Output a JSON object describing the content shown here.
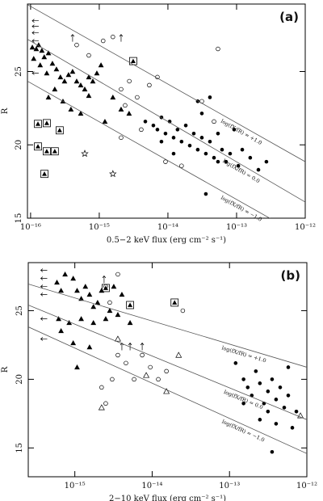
{
  "chart_data": [
    {
      "type": "scatter",
      "panel_label": "(a)",
      "xlabel": "0.5−2 keV flux (erg cm⁻² s⁻¹)",
      "ylabel": "R",
      "xscale": "log",
      "xlim": [
        9e-17,
        1e-12
      ],
      "ylim": [
        15,
        29.6
      ],
      "xticks": [
        {
          "value": 1e-16,
          "label": "10⁻¹⁶"
        },
        {
          "value": 1e-15,
          "label": "10⁻¹⁵"
        },
        {
          "value": 1e-14,
          "label": "10⁻¹⁴"
        },
        {
          "value": 1e-13,
          "label": "10⁻¹³"
        },
        {
          "value": 1e-12,
          "label": "10⁻¹²"
        }
      ],
      "yticks": [
        15,
        20,
        25
      ],
      "series": [
        {
          "marker": "filled-triangle",
          "color": "#000000",
          "x": [
            1.06e-16,
            1.21e-16,
            1.31e-16,
            1.46e-16,
            1.58e-16,
            1.82e-16,
            1.11e-16,
            1.38e-16,
            1.72e-16,
            2.08e-16,
            2.38e-16,
            2.72e-16,
            3.12e-16,
            3.57e-16,
            4.09e-16,
            4.69e-16,
            5.37e-16,
            6.15e-16,
            7.04e-16,
            8.06e-16,
            9.23e-16,
            1.06e-15,
            2.25e-16,
            2.96e-16,
            3.87e-16,
            1.82e-16,
            5.37e-16,
            7.04e-16,
            1.58e-15,
            2.08e-15,
            2.72e-15,
            1.21e-15
          ],
          "values": [
            26.65,
            26.54,
            26.81,
            26.43,
            25.99,
            26.26,
            25.88,
            25.44,
            24.89,
            25.55,
            25.16,
            24.62,
            24.34,
            24.78,
            25,
            24.34,
            24.07,
            23.79,
            24.62,
            24.34,
            24.89,
            25.44,
            23.79,
            22.97,
            22.42,
            23.24,
            22.14,
            23.35,
            23.24,
            22.42,
            22.14,
            21.59
          ]
        },
        {
          "marker": "filled-circle",
          "color": "#000000",
          "x": [
            4.69e-15,
            6.14e-15,
            7.03e-15,
            8.05e-15,
            9.22e-15,
            1.06e-14,
            1.21e-14,
            1.38e-14,
            1.58e-14,
            1.82e-14,
            2.08e-14,
            2.38e-14,
            2.72e-14,
            3.12e-14,
            3.57e-14,
            4.09e-14,
            4.69e-14,
            5.36e-14,
            6.14e-14,
            7.03e-14,
            8.05e-14,
            9.22e-14,
            1.06e-13,
            1.21e-13,
            1.58e-13,
            2.08e-13,
            2.72e-13,
            8.05e-15,
            1.21e-14,
            3.12e-14,
            2.72e-14,
            4.09e-14,
            5.36e-14,
            3.57e-14
          ],
          "values": [
            21.59,
            21.32,
            21.04,
            21.87,
            20.77,
            21.59,
            20.49,
            21.04,
            20.22,
            21.32,
            19.95,
            20.77,
            19.67,
            20.49,
            19.4,
            20.22,
            19.12,
            20.77,
            19.67,
            18.85,
            19.4,
            21.04,
            18.57,
            19.67,
            19.12,
            18.3,
            18.85,
            20.22,
            19.4,
            22.14,
            22.97,
            23.24,
            18.85,
            16.65
          ]
        },
        {
          "marker": "open-circle",
          "color": "#000000",
          "x": [
            4.69e-16,
            7.04e-16,
            1.14e-15,
            1.58e-15,
            2.08e-15,
            2.38e-15,
            2.74e-15,
            3.57e-15,
            5.36e-15,
            7.03e-15,
            9.22e-15,
            1.58e-14,
            2.08e-15,
            4.09e-15,
            4.69e-14,
            5.36e-14,
            3.12e-14
          ],
          "values": [
            26.81,
            26.1,
            27.09,
            27.36,
            23.79,
            22.69,
            24.34,
            23.24,
            24.07,
            24.62,
            18.85,
            18.57,
            20.49,
            21.04,
            21.59,
            26.54,
            22.97
          ]
        },
        {
          "marker": "boxed-triangle",
          "color": "#000000",
          "x": [
            1.28e-16,
            1.28e-16,
            1.72e-16,
            2.65e-16,
            1.72e-16,
            2.25e-16,
            1.59e-16,
            3.12e-15
          ],
          "values": [
            21.43,
            19.89,
            21.48,
            20.99,
            19.56,
            19.56,
            18.02,
            25.71
          ]
        },
        {
          "marker": "star",
          "color": "#000000",
          "x": [
            6.15e-16,
            1.58e-15
          ],
          "values": [
            19.4,
            18.02
          ]
        },
        {
          "marker": "arrow-up",
          "color": "#000000",
          "x": [
            4.09e-16,
            2.08e-15
          ],
          "values": [
            27.25,
            27.25
          ]
        },
        {
          "marker": "arrow-left",
          "color": "#000000",
          "x": [
            1.21e-16,
            1.21e-16,
            1.21e-16,
            1.21e-16,
            1.21e-16
          ],
          "values": [
            28.46,
            28.08,
            27.64,
            27.09,
            24.89
          ]
        },
        {
          "marker": "line",
          "color": "#555555",
          "name": "log(fX/fR) = +1.0",
          "x": [
            9e-17,
            1e-12
          ],
          "values": [
            29.56,
            18.85
          ]
        },
        {
          "marker": "line",
          "color": "#555555",
          "name": "log(fX/fR) = 0.0",
          "x": [
            9e-17,
            1e-12
          ],
          "values": [
            27.2,
            16.1
          ]
        },
        {
          "marker": "line",
          "color": "#555555",
          "name": "log(fX/fR) = −1.0",
          "x": [
            9e-17,
            1e-12
          ],
          "values": [
            24.34,
            13.63
          ]
        }
      ]
    },
    {
      "type": "scatter",
      "panel_label": "(b)",
      "xlabel": "2−10 keV flux (erg cm⁻² s⁻¹)",
      "ylabel": "R",
      "xscale": "log",
      "xlim": [
        2.5e-16,
        1e-12
      ],
      "ylim": [
        12.9,
        28.5
      ],
      "xticks": [
        {
          "value": 1e-15,
          "label": "10⁻¹⁵"
        },
        {
          "value": 1e-14,
          "label": "10⁻¹⁴"
        },
        {
          "value": 1e-13,
          "label": "10⁻¹³"
        },
        {
          "value": 1e-12,
          "label": "10⁻¹²"
        }
      ],
      "yticks": [
        15,
        20,
        25
      ],
      "series": [
        {
          "marker": "filled-triangle",
          "color": "#000000",
          "x": [
            5.87e-16,
            6.64e-16,
            7.48e-16,
            9.53e-16,
            1.07e-15,
            1.21e-15,
            1.37e-15,
            1.55e-15,
            1.74e-15,
            1.97e-15,
            2.22e-15,
            2.83e-15,
            3.19e-15,
            4.06e-15,
            6.17e-16,
            8.45e-16,
            1.21e-15,
            1.74e-15,
            2.51e-15,
            9.53e-16,
            1.55e-15,
            6.64e-16,
            1.07e-15,
            3.6e-15,
            5.18e-15
          ],
          "values": [
            27.06,
            26.47,
            27.65,
            27.35,
            26.47,
            25.88,
            26.76,
            26.18,
            25.29,
            25.59,
            26.47,
            25,
            26.76,
            26.18,
            24.41,
            24.12,
            24.41,
            24.12,
            24.41,
            22.65,
            22.35,
            23.53,
            20.88,
            24.71,
            24.12
          ]
        },
        {
          "marker": "filled-circle",
          "color": "#000000",
          "x": [
            1.2e-13,
            1.52e-13,
            1.72e-13,
            1.94e-13,
            2.19e-13,
            2.47e-13,
            2.79e-13,
            3.14e-13,
            3.55e-13,
            4e-13,
            4.52e-13,
            5.1e-13,
            5.75e-13,
            2.47e-13,
            3.14e-13,
            4e-13,
            6.49e-13,
            7.32e-13,
            3.55e-13,
            5.75e-13,
            1.52e-13
          ],
          "values": [
            21.18,
            20,
            19.41,
            18.82,
            20.59,
            19.71,
            18.24,
            19.12,
            20,
            18.53,
            19.41,
            17.94,
            18.82,
            17.06,
            17.65,
            16.76,
            16.47,
            17.65,
            14.71,
            20.88,
            18.24
          ]
        },
        {
          "marker": "open-circle",
          "color": "#000000",
          "x": [
            2.22e-15,
            2.51e-15,
            3.04e-15,
            3.6e-15,
            4.58e-15,
            5.84e-15,
            9.46e-15,
            1.2e-14,
            1.53e-14,
            7.43e-15,
            2.51e-15,
            3.6e-15,
            2.49e-14,
            2.83e-15
          ],
          "values": [
            19.41,
            18.24,
            20,
            21.76,
            21.18,
            20,
            20.88,
            20,
            20.59,
            21.76,
            26.76,
            27.65,
            25,
            25.59
          ]
        },
        {
          "marker": "open-triangle",
          "color": "#000000",
          "x": [
            2.22e-15,
            8.38e-15,
            1.53e-14,
            3.6e-15,
            2.2e-14,
            8.26e-13
          ],
          "values": [
            17.94,
            20.29,
            19.12,
            22.94,
            21.76,
            17.35
          ]
        },
        {
          "marker": "boxed-triangle",
          "color": "#000000",
          "x": [
            2.51e-15,
            5.18e-15,
            1.95e-14
          ],
          "values": [
            26.65,
            25.41,
            25.59
          ]
        },
        {
          "marker": "arrow-up",
          "color": "#000000",
          "x": [
            4.06e-15,
            5.18e-15,
            7.43e-15,
            2.39e-15
          ],
          "values": [
            22.35,
            22.35,
            22.35,
            27.24
          ]
        },
        {
          "marker": "arrow-left",
          "color": "#000000",
          "x": [
            4.09e-16,
            4.09e-16,
            4.09e-16,
            4.09e-16,
            4.09e-16,
            4.09e-16
          ],
          "values": [
            27.94,
            27.35,
            26.76,
            26.18,
            24.41,
            22.94
          ]
        },
        {
          "marker": "line",
          "color": "#555555",
          "name": "log(fX/fR) = +1.0",
          "x": [
            2.5e-16,
            1e-12
          ],
          "values": [
            26.94,
            20.88
          ]
        },
        {
          "marker": "line",
          "color": "#555555",
          "name": "log(fX/fR) = 0.0",
          "x": [
            2.5e-16,
            1e-12
          ],
          "values": [
            25.41,
            17.06
          ]
        },
        {
          "marker": "line",
          "color": "#555555",
          "name": "log(fX/fR) = −1.0",
          "x": [
            2.5e-16,
            1e-12
          ],
          "values": [
            23.82,
            14.59
          ]
        }
      ]
    }
  ]
}
